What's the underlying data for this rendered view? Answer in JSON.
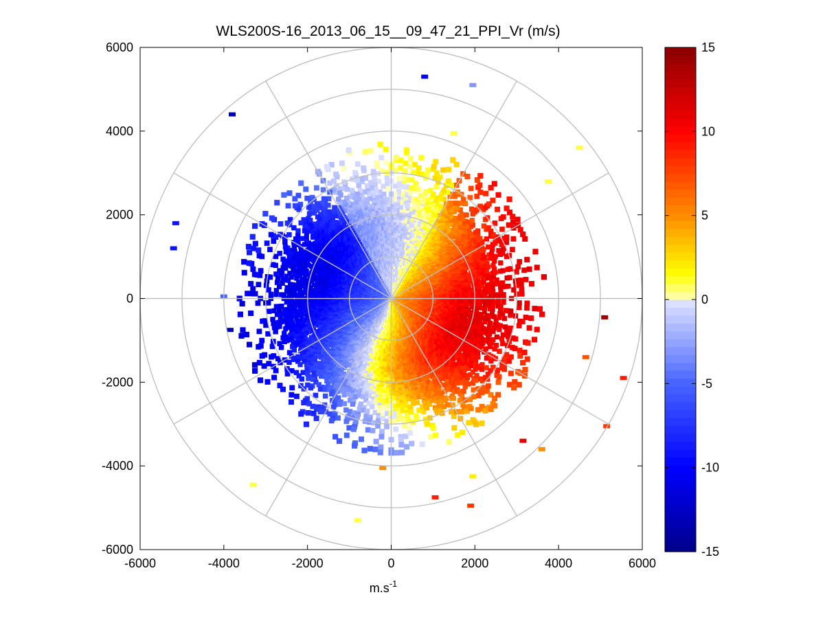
{
  "figure": {
    "title": "WLS200S-16_2013_06_15__09_47_21_PPI_Vr (m/s)"
  },
  "chart_data": {
    "type": "heatmap",
    "subtype": "polar-ppi-scan",
    "title": "WLS200S-16_2013_06_15__09_47_21_PPI_Vr (m/s)",
    "xlabel": "m.s",
    "xlabel_superscript": "-1",
    "ylabel": "",
    "xlim": [
      -6000,
      6000
    ],
    "ylim": [
      -6000,
      6000
    ],
    "xticks": [
      -6000,
      -4000,
      -2000,
      0,
      2000,
      4000,
      6000
    ],
    "yticks": [
      -6000,
      -4000,
      -2000,
      0,
      2000,
      4000,
      6000
    ],
    "polar_grid": {
      "ring_radii": [
        1000,
        2000,
        3000,
        4000,
        5000,
        6000
      ],
      "spoke_angles_deg": [
        0,
        30,
        60,
        90,
        120,
        150,
        180,
        210,
        240,
        270,
        300,
        330
      ],
      "grid": true
    },
    "colorbar": {
      "range": [
        -15,
        15
      ],
      "ticks": [
        15,
        10,
        5,
        0,
        -5,
        -10,
        -15
      ],
      "colormap": "blue-white-yellow-red",
      "position": "right"
    },
    "colors": {
      "negative_max": "#00008b",
      "negative_strong": "#0000ff",
      "near_zero_negative": "#dde0ff",
      "near_zero_positive": "#ffffb0",
      "positive_mid": "#ff8c00",
      "positive_strong": "#ff0000",
      "positive_max": "#8b0000",
      "grid": "#c0c0c0"
    },
    "field_model": {
      "description_of_pattern": "dense core within ~2500 m, sparse returns up to ~5600 m",
      "dense_radius": 2500,
      "max_radius": 5600,
      "velocity_at_core_edge": 11,
      "dominant_direction": "negative to the west, positive to the east"
    },
    "sample_points": [
      {
        "x": 800,
        "y": 5300,
        "v": -10
      },
      {
        "x": 1950,
        "y": 5100,
        "v": -3
      },
      {
        "x": -3800,
        "y": 4400,
        "v": -13
      },
      {
        "x": 4500,
        "y": 3600,
        "v": 1
      },
      {
        "x": -5150,
        "y": 1800,
        "v": -9
      },
      {
        "x": -5200,
        "y": 1200,
        "v": -9
      },
      {
        "x": -4000,
        "y": 50,
        "v": -5
      },
      {
        "x": -3850,
        "y": -750,
        "v": -13
      },
      {
        "x": 5100,
        "y": -450,
        "v": 14
      },
      {
        "x": 5550,
        "y": -1900,
        "v": 9
      },
      {
        "x": 4650,
        "y": -1400,
        "v": 7
      },
      {
        "x": 5150,
        "y": -3050,
        "v": 8
      },
      {
        "x": 3150,
        "y": -3400,
        "v": 11
      },
      {
        "x": 3600,
        "y": -3600,
        "v": 5
      },
      {
        "x": 1950,
        "y": -4250,
        "v": 2
      },
      {
        "x": 1050,
        "y": -4750,
        "v": 9
      },
      {
        "x": 1900,
        "y": -4950,
        "v": 8
      },
      {
        "x": -3300,
        "y": -4450,
        "v": 1
      },
      {
        "x": -800,
        "y": -5300,
        "v": 1
      },
      {
        "x": -200,
        "y": -4050,
        "v": 5
      },
      {
        "x": 1500,
        "y": 3950,
        "v": 1
      },
      {
        "x": 3750,
        "y": 2800,
        "v": 1
      }
    ]
  }
}
